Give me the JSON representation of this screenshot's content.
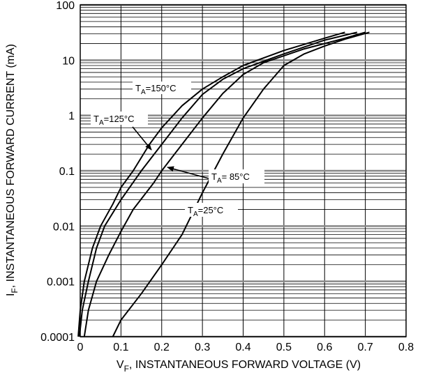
{
  "chart_data": {
    "type": "line",
    "title": "",
    "xlabel": {
      "main": "V",
      "sub": "F",
      "rest": ", INSTANTANEOUS FORWARD VOLTAGE (V)"
    },
    "ylabel": {
      "main": "I",
      "sub": "F",
      "rest": ", INSTANTANEOUS FORWARD CURRENT (mA)"
    },
    "xlim": [
      0,
      0.8
    ],
    "ylim": [
      0.0001,
      100
    ],
    "yscale": "log",
    "grid": true,
    "x_ticks": [
      {
        "value": 0,
        "label": "0"
      },
      {
        "value": 0.1,
        "label": "0.1"
      },
      {
        "value": 0.2,
        "label": "0.2"
      },
      {
        "value": 0.3,
        "label": "0.3"
      },
      {
        "value": 0.4,
        "label": "0.4"
      },
      {
        "value": 0.5,
        "label": "0.5"
      },
      {
        "value": 0.6,
        "label": "0.6"
      },
      {
        "value": 0.7,
        "label": "0.7"
      },
      {
        "value": 0.8,
        "label": "0.8"
      }
    ],
    "y_ticks": [
      {
        "value": 100,
        "label": "100"
      },
      {
        "value": 10,
        "label": "10"
      },
      {
        "value": 1,
        "label": "1"
      },
      {
        "value": 0.1,
        "label": "0.1"
      },
      {
        "value": 0.01,
        "label": "0.01"
      },
      {
        "value": 0.001,
        "label": "0.001"
      },
      {
        "value": 0.0001,
        "label": "0.0001"
      }
    ],
    "series": [
      {
        "name": "T_A=150°C",
        "points": [
          [
            -0.005,
            0.0001
          ],
          [
            0,
            0.0003
          ],
          [
            0.01,
            0.001
          ],
          [
            0.03,
            0.004
          ],
          [
            0.05,
            0.01
          ],
          [
            0.08,
            0.025
          ],
          [
            0.1,
            0.05
          ],
          [
            0.13,
            0.1
          ],
          [
            0.17,
            0.3
          ],
          [
            0.2,
            0.6
          ],
          [
            0.25,
            1.5
          ],
          [
            0.3,
            3
          ],
          [
            0.35,
            5
          ],
          [
            0.4,
            8
          ],
          [
            0.5,
            15
          ],
          [
            0.6,
            25
          ],
          [
            0.65,
            32
          ]
        ]
      },
      {
        "name": "T_A=125°C",
        "points": [
          [
            -0.002,
            0.0001
          ],
          [
            0.005,
            0.0003
          ],
          [
            0.02,
            0.001
          ],
          [
            0.04,
            0.004
          ],
          [
            0.06,
            0.01
          ],
          [
            0.1,
            0.03
          ],
          [
            0.15,
            0.1
          ],
          [
            0.2,
            0.3
          ],
          [
            0.25,
            0.9
          ],
          [
            0.3,
            2.4
          ],
          [
            0.35,
            4.5
          ],
          [
            0.4,
            7
          ],
          [
            0.5,
            13
          ],
          [
            0.6,
            23
          ],
          [
            0.68,
            32
          ]
        ]
      },
      {
        "name": "T_A= 85°C",
        "points": [
          [
            0.01,
            0.0001
          ],
          [
            0.02,
            0.0003
          ],
          [
            0.04,
            0.001
          ],
          [
            0.07,
            0.003
          ],
          [
            0.1,
            0.008
          ],
          [
            0.13,
            0.02
          ],
          [
            0.18,
            0.06
          ],
          [
            0.2,
            0.1
          ],
          [
            0.25,
            0.3
          ],
          [
            0.3,
            0.9
          ],
          [
            0.35,
            2.5
          ],
          [
            0.4,
            5.5
          ],
          [
            0.45,
            9
          ],
          [
            0.55,
            16
          ],
          [
            0.65,
            25
          ],
          [
            0.7,
            32
          ]
        ]
      },
      {
        "name": "T_A=25°C",
        "points": [
          [
            0.08,
            0.0001
          ],
          [
            0.1,
            0.0002
          ],
          [
            0.15,
            0.0006
          ],
          [
            0.2,
            0.002
          ],
          [
            0.25,
            0.007
          ],
          [
            0.28,
            0.02
          ],
          [
            0.3,
            0.04
          ],
          [
            0.35,
            0.2
          ],
          [
            0.4,
            0.9
          ],
          [
            0.45,
            3
          ],
          [
            0.5,
            8
          ],
          [
            0.55,
            13
          ],
          [
            0.6,
            18
          ],
          [
            0.65,
            24
          ],
          [
            0.71,
            32
          ]
        ]
      }
    ],
    "annotations": [
      {
        "main": "T",
        "sub": "A",
        "rest": "=150°C"
      },
      {
        "main": "T",
        "sub": "A",
        "rest": "=125°C"
      },
      {
        "main": "T",
        "sub": "A",
        "rest": "= 85°C"
      },
      {
        "main": "T",
        "sub": "A",
        "rest": "=25°C"
      }
    ]
  }
}
